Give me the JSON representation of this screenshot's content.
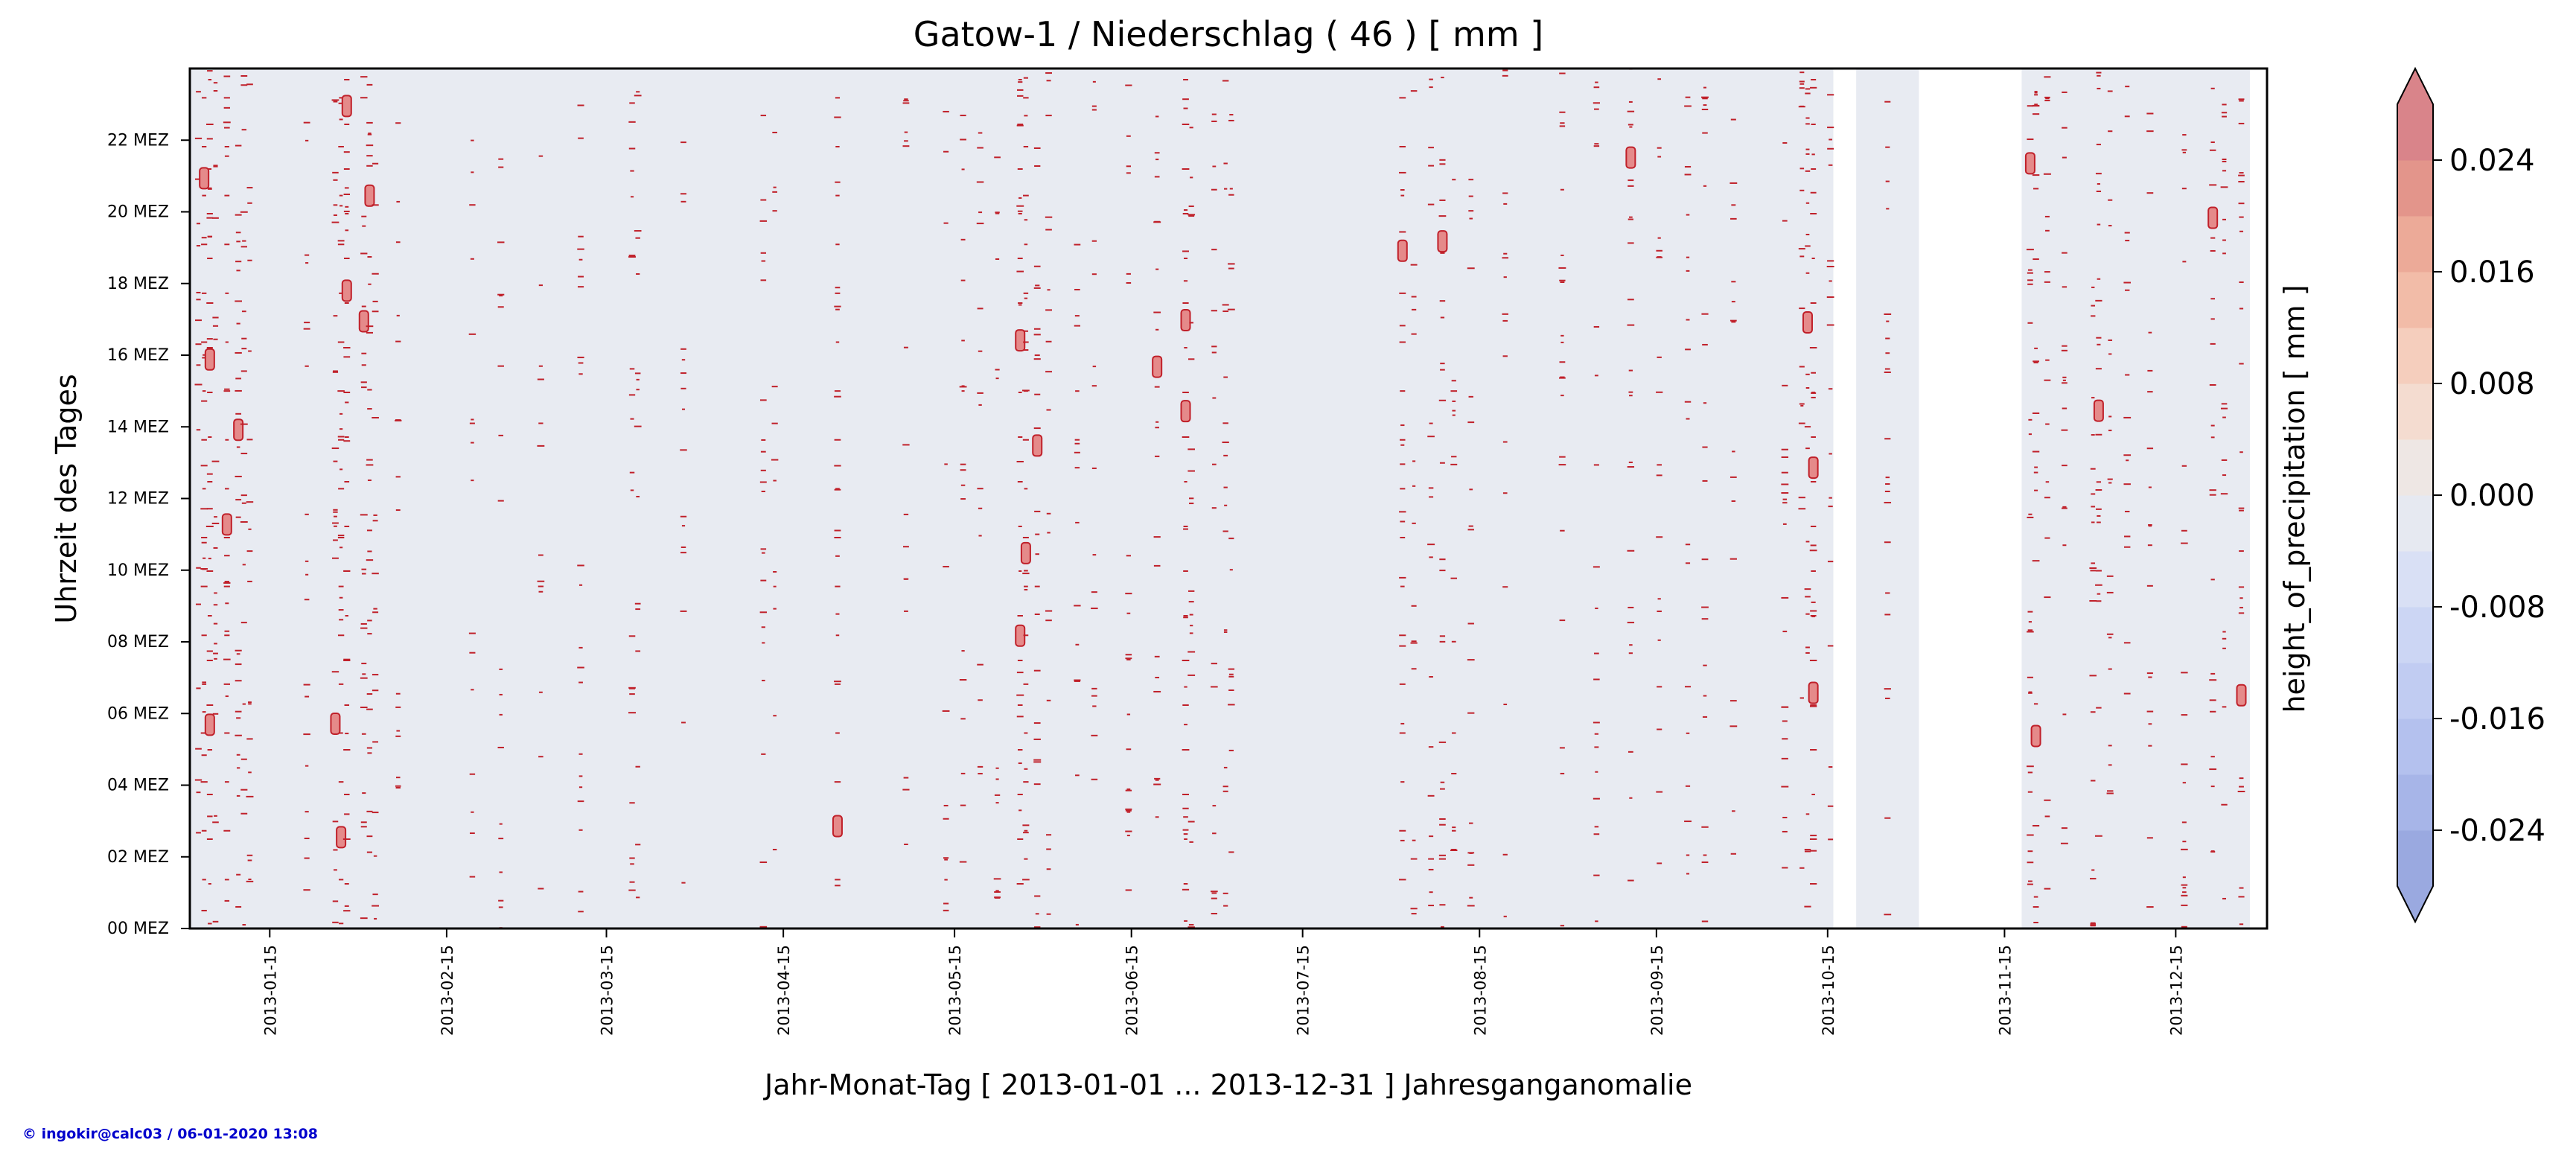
{
  "copyright": "© ingokir@calc03 / 06-01-2020 13:08",
  "chart_data": {
    "type": "heatmap",
    "title": "Gatow-1 / Niederschlag ( 46 ) [ mm ]",
    "xlabel": "Jahr-Monat-Tag [ 2013-01-01 ... 2013-12-31 ] Jahresganganomalie",
    "ylabel": "Uhrzeit des Tages",
    "colorbar_label": "height_of_precipitation [ mm ]",
    "x_range": [
      "2013-01-01",
      "2013-12-31"
    ],
    "y_range_hours": [
      0,
      24
    ],
    "x_ticks": [
      "2013-01-15",
      "2013-02-15",
      "2013-03-15",
      "2013-04-15",
      "2013-05-15",
      "2013-06-15",
      "2013-07-15",
      "2013-08-15",
      "2013-09-15",
      "2013-10-15",
      "2013-11-15",
      "2013-12-15"
    ],
    "y_ticks": [
      {
        "hour": 0,
        "label": "00 MEZ"
      },
      {
        "hour": 2,
        "label": "02 MEZ"
      },
      {
        "hour": 4,
        "label": "04 MEZ"
      },
      {
        "hour": 6,
        "label": "06 MEZ"
      },
      {
        "hour": 8,
        "label": "08 MEZ"
      },
      {
        "hour": 10,
        "label": "10 MEZ"
      },
      {
        "hour": 12,
        "label": "12 MEZ"
      },
      {
        "hour": 14,
        "label": "14 MEZ"
      },
      {
        "hour": 16,
        "label": "16 MEZ"
      },
      {
        "hour": 18,
        "label": "18 MEZ"
      },
      {
        "hour": 20,
        "label": "20 MEZ"
      },
      {
        "hour": 22,
        "label": "22 MEZ"
      }
    ],
    "colorbar_ticks": [
      "0.024",
      "0.016",
      "0.008",
      "0.000",
      "-0.008",
      "-0.016",
      "-0.024"
    ],
    "colorbar_range": [
      -0.028,
      0.028
    ],
    "colorbar_levels": [
      {
        "from": -0.028,
        "to": -0.024,
        "color": "#9aa9e0"
      },
      {
        "from": -0.024,
        "to": -0.02,
        "color": "#a7b5e8"
      },
      {
        "from": -0.02,
        "to": -0.016,
        "color": "#b4c1ee"
      },
      {
        "from": -0.016,
        "to": -0.012,
        "color": "#c1ccf2"
      },
      {
        "from": -0.012,
        "to": -0.008,
        "color": "#ccd6f4"
      },
      {
        "from": -0.008,
        "to": -0.004,
        "color": "#d9e0f5"
      },
      {
        "from": -0.004,
        "to": 0.0,
        "color": "#e6e9f1"
      },
      {
        "from": 0.0,
        "to": 0.004,
        "color": "#eee7e4"
      },
      {
        "from": 0.004,
        "to": 0.008,
        "color": "#f4dcd0"
      },
      {
        "from": 0.008,
        "to": 0.012,
        "color": "#f5cebd"
      },
      {
        "from": 0.012,
        "to": 0.016,
        "color": "#f2bca8"
      },
      {
        "from": 0.016,
        "to": 0.02,
        "color": "#ecaa98"
      },
      {
        "from": 0.02,
        "to": 0.024,
        "color": "#e3958b"
      },
      {
        "from": 0.024,
        "to": 0.028,
        "color": "#d9848a"
      }
    ],
    "background_color": "#e8ebf2",
    "precip_color": "#c0202a",
    "missing_periods": [
      [
        "2013-10-16",
        "2013-10-19"
      ],
      [
        "2013-10-31",
        "2013-11-17"
      ],
      [
        "2013-12-28",
        "2013-12-31"
      ]
    ],
    "rain_days": [
      {
        "date": "2013-01-02",
        "intensity": 0.5
      },
      {
        "date": "2013-01-03",
        "intensity": 0.9
      },
      {
        "date": "2013-01-04",
        "intensity": 1.0
      },
      {
        "date": "2013-01-05",
        "intensity": 0.6
      },
      {
        "date": "2013-01-07",
        "intensity": 0.9
      },
      {
        "date": "2013-01-09",
        "intensity": 0.8
      },
      {
        "date": "2013-01-10",
        "intensity": 0.6
      },
      {
        "date": "2013-01-11",
        "intensity": 0.5
      },
      {
        "date": "2013-01-21",
        "intensity": 0.5
      },
      {
        "date": "2013-01-26",
        "intensity": 0.7
      },
      {
        "date": "2013-01-27",
        "intensity": 0.9
      },
      {
        "date": "2013-01-28",
        "intensity": 1.0
      },
      {
        "date": "2013-01-31",
        "intensity": 0.7
      },
      {
        "date": "2013-02-01",
        "intensity": 0.8
      },
      {
        "date": "2013-02-02",
        "intensity": 0.5
      },
      {
        "date": "2013-02-06",
        "intensity": 0.4
      },
      {
        "date": "2013-02-19",
        "intensity": 0.4
      },
      {
        "date": "2013-02-24",
        "intensity": 0.5
      },
      {
        "date": "2013-03-03",
        "intensity": 0.3
      },
      {
        "date": "2013-03-10",
        "intensity": 0.6
      },
      {
        "date": "2013-03-19",
        "intensity": 0.6
      },
      {
        "date": "2013-03-20",
        "intensity": 0.4
      },
      {
        "date": "2013-03-28",
        "intensity": 0.4
      },
      {
        "date": "2013-04-11",
        "intensity": 0.6
      },
      {
        "date": "2013-04-13",
        "intensity": 0.3
      },
      {
        "date": "2013-04-24",
        "intensity": 0.9
      },
      {
        "date": "2013-05-06",
        "intensity": 0.4
      },
      {
        "date": "2013-05-13",
        "intensity": 0.3
      },
      {
        "date": "2013-05-16",
        "intensity": 0.5
      },
      {
        "date": "2013-05-19",
        "intensity": 0.4
      },
      {
        "date": "2013-05-22",
        "intensity": 0.4
      },
      {
        "date": "2013-05-26",
        "intensity": 1.0
      },
      {
        "date": "2013-05-27",
        "intensity": 0.9
      },
      {
        "date": "2013-05-29",
        "intensity": 0.7
      },
      {
        "date": "2013-05-31",
        "intensity": 0.5
      },
      {
        "date": "2013-06-05",
        "intensity": 0.4
      },
      {
        "date": "2013-06-08",
        "intensity": 0.4
      },
      {
        "date": "2013-06-14",
        "intensity": 0.6
      },
      {
        "date": "2013-06-19",
        "intensity": 0.7
      },
      {
        "date": "2013-06-24",
        "intensity": 1.0
      },
      {
        "date": "2013-06-25",
        "intensity": 0.6
      },
      {
        "date": "2013-06-29",
        "intensity": 0.5
      },
      {
        "date": "2013-07-01",
        "intensity": 0.5
      },
      {
        "date": "2013-07-02",
        "intensity": 0.4
      },
      {
        "date": "2013-08-01",
        "intensity": 0.9
      },
      {
        "date": "2013-08-03",
        "intensity": 0.4
      },
      {
        "date": "2013-08-06",
        "intensity": 0.5
      },
      {
        "date": "2013-08-08",
        "intensity": 0.7
      },
      {
        "date": "2013-08-10",
        "intensity": 0.4
      },
      {
        "date": "2013-08-13",
        "intensity": 0.5
      },
      {
        "date": "2013-08-19",
        "intensity": 0.4
      },
      {
        "date": "2013-08-29",
        "intensity": 0.6
      },
      {
        "date": "2013-09-04",
        "intensity": 0.6
      },
      {
        "date": "2013-09-10",
        "intensity": 0.7
      },
      {
        "date": "2013-09-15",
        "intensity": 0.5
      },
      {
        "date": "2013-09-20",
        "intensity": 0.5
      },
      {
        "date": "2013-09-23",
        "intensity": 0.6
      },
      {
        "date": "2013-09-28",
        "intensity": 0.4
      },
      {
        "date": "2013-10-07",
        "intensity": 0.6
      },
      {
        "date": "2013-10-10",
        "intensity": 0.5
      },
      {
        "date": "2013-10-11",
        "intensity": 0.7
      },
      {
        "date": "2013-10-12",
        "intensity": 1.0
      },
      {
        "date": "2013-10-15",
        "intensity": 0.5
      },
      {
        "date": "2013-10-25",
        "intensity": 0.6
      },
      {
        "date": "2013-11-19",
        "intensity": 0.8
      },
      {
        "date": "2013-11-20",
        "intensity": 0.7
      },
      {
        "date": "2013-11-22",
        "intensity": 0.5
      },
      {
        "date": "2013-11-25",
        "intensity": 0.5
      },
      {
        "date": "2013-11-30",
        "intensity": 0.6
      },
      {
        "date": "2013-12-01",
        "intensity": 0.7
      },
      {
        "date": "2013-12-03",
        "intensity": 0.5
      },
      {
        "date": "2013-12-06",
        "intensity": 0.4
      },
      {
        "date": "2013-12-10",
        "intensity": 0.5
      },
      {
        "date": "2013-12-16",
        "intensity": 0.6
      },
      {
        "date": "2013-12-21",
        "intensity": 0.7
      },
      {
        "date": "2013-12-23",
        "intensity": 0.6
      },
      {
        "date": "2013-12-26",
        "intensity": 0.8
      }
    ]
  }
}
